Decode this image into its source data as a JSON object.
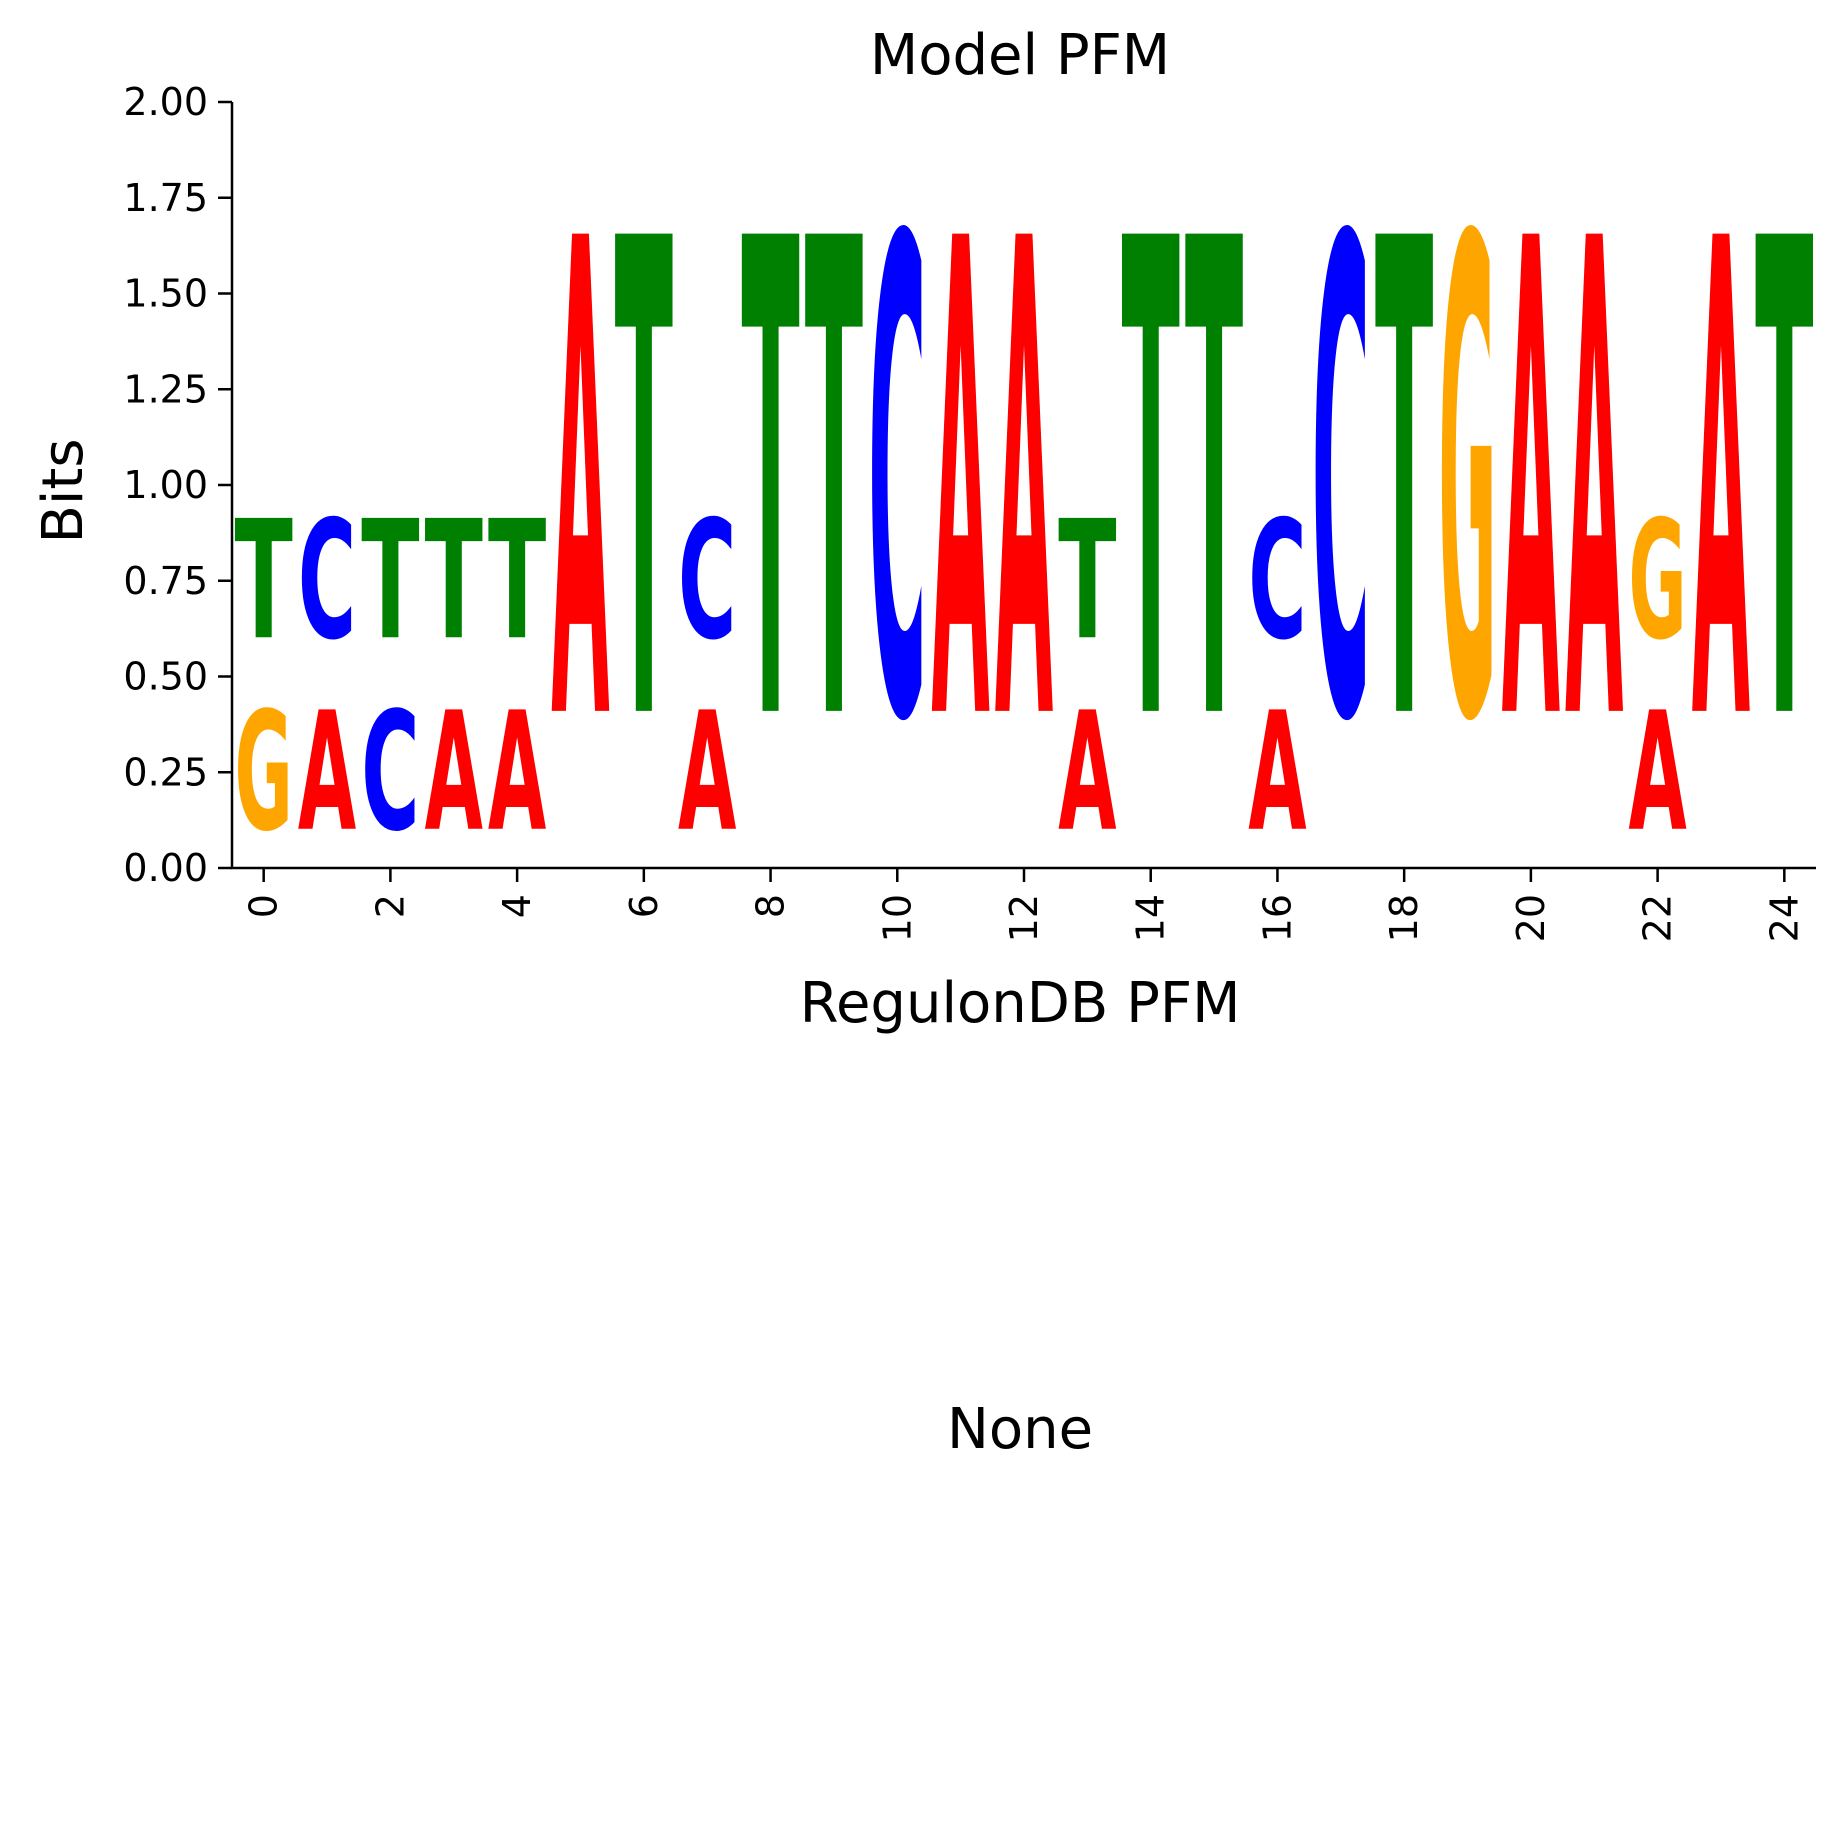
{
  "chart_data": {
    "type": "sequence-logo",
    "title": "Model PFM",
    "xlabel": "RegulonDB PFM",
    "ylabel": "Bits",
    "ylim": [
      0,
      2
    ],
    "xlim": [
      -0.5,
      24.5
    ],
    "y_ticks": [
      "0.00",
      "0.25",
      "0.50",
      "0.75",
      "1.00",
      "1.25",
      "1.50",
      "1.75",
      "2.00"
    ],
    "x_ticks": [
      "0",
      "2",
      "4",
      "6",
      "8",
      "10",
      "12",
      "14",
      "16",
      "18",
      "20",
      "22",
      "24"
    ],
    "colors": {
      "A": "#ff0000",
      "C": "#0000ff",
      "G": "#ffa500",
      "T": "#008000"
    },
    "positions": [
      {
        "pos": 0,
        "stack": [
          {
            "letter": "G",
            "bits": 0.5
          },
          {
            "letter": "T",
            "bits": 0.5
          }
        ]
      },
      {
        "pos": 1,
        "stack": [
          {
            "letter": "A",
            "bits": 0.5
          },
          {
            "letter": "C",
            "bits": 0.5
          }
        ]
      },
      {
        "pos": 2,
        "stack": [
          {
            "letter": "C",
            "bits": 0.5
          },
          {
            "letter": "T",
            "bits": 0.5
          }
        ]
      },
      {
        "pos": 3,
        "stack": [
          {
            "letter": "A",
            "bits": 0.5
          },
          {
            "letter": "T",
            "bits": 0.5
          }
        ]
      },
      {
        "pos": 4,
        "stack": [
          {
            "letter": "A",
            "bits": 0.5
          },
          {
            "letter": "T",
            "bits": 0.5
          }
        ]
      },
      {
        "pos": 5,
        "stack": [
          {
            "letter": "A",
            "bits": 2.0
          }
        ]
      },
      {
        "pos": 6,
        "stack": [
          {
            "letter": "T",
            "bits": 2.0
          }
        ]
      },
      {
        "pos": 7,
        "stack": [
          {
            "letter": "A",
            "bits": 0.5
          },
          {
            "letter": "C",
            "bits": 0.5
          }
        ]
      },
      {
        "pos": 8,
        "stack": [
          {
            "letter": "T",
            "bits": 2.0
          }
        ]
      },
      {
        "pos": 9,
        "stack": [
          {
            "letter": "T",
            "bits": 2.0
          }
        ]
      },
      {
        "pos": 10,
        "stack": [
          {
            "letter": "C",
            "bits": 2.0
          }
        ]
      },
      {
        "pos": 11,
        "stack": [
          {
            "letter": "A",
            "bits": 2.0
          }
        ]
      },
      {
        "pos": 12,
        "stack": [
          {
            "letter": "A",
            "bits": 2.0
          }
        ]
      },
      {
        "pos": 13,
        "stack": [
          {
            "letter": "A",
            "bits": 0.5
          },
          {
            "letter": "T",
            "bits": 0.5
          }
        ]
      },
      {
        "pos": 14,
        "stack": [
          {
            "letter": "T",
            "bits": 2.0
          }
        ]
      },
      {
        "pos": 15,
        "stack": [
          {
            "letter": "T",
            "bits": 2.0
          }
        ]
      },
      {
        "pos": 16,
        "stack": [
          {
            "letter": "A",
            "bits": 0.5
          },
          {
            "letter": "C",
            "bits": 0.5
          }
        ]
      },
      {
        "pos": 17,
        "stack": [
          {
            "letter": "C",
            "bits": 2.0
          }
        ]
      },
      {
        "pos": 18,
        "stack": [
          {
            "letter": "T",
            "bits": 2.0
          }
        ]
      },
      {
        "pos": 19,
        "stack": [
          {
            "letter": "G",
            "bits": 2.0
          }
        ]
      },
      {
        "pos": 20,
        "stack": [
          {
            "letter": "A",
            "bits": 2.0
          }
        ]
      },
      {
        "pos": 21,
        "stack": [
          {
            "letter": "A",
            "bits": 2.0
          }
        ]
      },
      {
        "pos": 22,
        "stack": [
          {
            "letter": "A",
            "bits": 0.5
          },
          {
            "letter": "G",
            "bits": 0.5
          }
        ]
      },
      {
        "pos": 23,
        "stack": [
          {
            "letter": "A",
            "bits": 2.0
          }
        ]
      },
      {
        "pos": 24,
        "stack": [
          {
            "letter": "T",
            "bits": 2.0
          }
        ]
      }
    ]
  },
  "second_panel": {
    "text": "None"
  }
}
